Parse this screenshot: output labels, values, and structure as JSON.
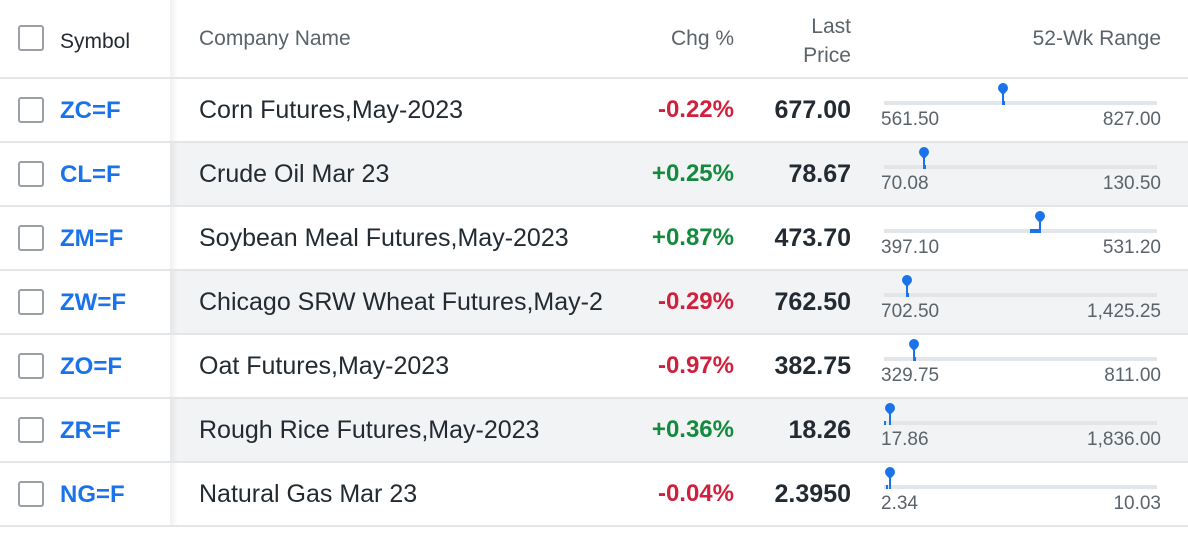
{
  "header": {
    "symbol": "Symbol",
    "company": "Company Name",
    "chg": "Chg %",
    "price_line1": "Last",
    "price_line2": "Price",
    "range": "52-Wk Range"
  },
  "colors": {
    "link": "#1a73e8",
    "negative": "#d1203d",
    "positive": "#138a3d",
    "marker": "#1a73e8"
  },
  "rows": [
    {
      "symbol": "ZC=F",
      "name": "Corn Futures,May-2023",
      "chg": "-0.22%",
      "direction": "neg",
      "price": "677.00",
      "low": "561.50",
      "high": "827.00",
      "position": 0.435,
      "mark": [
        0.435,
        0.435
      ]
    },
    {
      "symbol": "CL=F",
      "name": "Crude Oil Mar 23",
      "chg": "+0.25%",
      "direction": "pos",
      "price": "78.67",
      "low": "70.08",
      "high": "130.50",
      "position": 0.145,
      "mark": [
        0.145,
        0.145
      ]
    },
    {
      "symbol": "ZM=F",
      "name": "Soybean Meal Futures,May-2023",
      "chg": "+0.87%",
      "direction": "pos",
      "price": "473.70",
      "low": "397.10",
      "high": "531.20",
      "position": 0.571,
      "mark": [
        0.535,
        0.57
      ]
    },
    {
      "symbol": "ZW=F",
      "name": "Chicago SRW Wheat Futures,May-2",
      "chg": "-0.29%",
      "direction": "neg",
      "price": "762.50",
      "low": "702.50",
      "high": "1,425.25",
      "position": 0.083,
      "mark": [
        0.083,
        0.083
      ]
    },
    {
      "symbol": "ZO=F",
      "name": "Oat Futures,May-2023",
      "chg": "-0.97%",
      "direction": "neg",
      "price": "382.75",
      "low": "329.75",
      "high": "811.00",
      "position": 0.11,
      "mark": [
        0.11,
        0.11
      ]
    },
    {
      "symbol": "ZR=F",
      "name": "Rough Rice Futures,May-2023",
      "chg": "+0.36%",
      "direction": "pos",
      "price": "18.26",
      "low": "17.86",
      "high": "1,836.00",
      "position": 0.0,
      "mark": [
        0.0,
        0.0
      ]
    },
    {
      "symbol": "NG=F",
      "name": "Natural Gas Mar 23",
      "chg": "-0.04%",
      "direction": "neg",
      "price": "2.3950",
      "low": "2.34",
      "high": "10.03",
      "position": 0.007,
      "mark": [
        0.007,
        0.007
      ]
    }
  ]
}
